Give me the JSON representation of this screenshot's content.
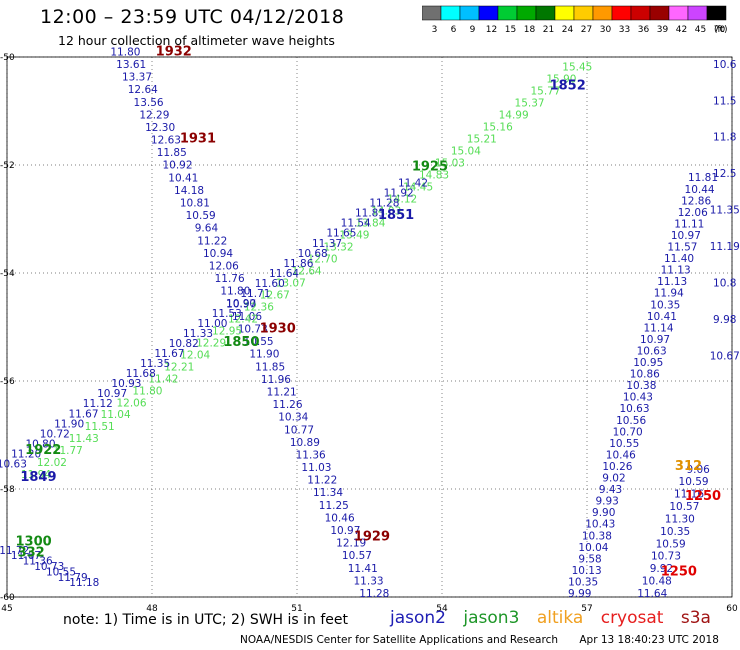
{
  "header": {
    "title": "12:00 – 23:59 UTC 04/12/2018",
    "subtitle": "12 hour collection of altimeter wave heights"
  },
  "colorbar": {
    "unit": "(ft)",
    "ticks": [
      "3",
      "6",
      "9",
      "12",
      "15",
      "18",
      "21",
      "24",
      "27",
      "30",
      "33",
      "36",
      "39",
      "42",
      "45",
      "70"
    ],
    "colors": [
      "#707070",
      "#00ffff",
      "#00bfff",
      "#0000ff",
      "#00cc33",
      "#00aa00",
      "#007700",
      "#ffff00",
      "#ffcc00",
      "#ff9900",
      "#ff0000",
      "#cc0000",
      "#990000",
      "#ff66ff",
      "#cc44ff",
      "#000000"
    ]
  },
  "legend": {
    "note": "note:  1) Time is in UTC;  2) SWH is in feet",
    "items": [
      {
        "name": "jason2",
        "color": "#1e1eb4"
      },
      {
        "name": "jason3",
        "color": "#1e9628"
      },
      {
        "name": "altika",
        "color": "#f0a020"
      },
      {
        "name": "cryosat",
        "color": "#e61e1e"
      },
      {
        "name": "s3a",
        "color": "#a01414"
      }
    ]
  },
  "footer": {
    "credit": "NOAA/NESDIS Center for Satellite Applications and Research",
    "timestamp": "Apr 13 18:40:23 UTC 2018"
  },
  "chart_data": {
    "type": "scatter",
    "title": "12:00 – 23:59 UTC 04/12/2018",
    "subtitle": "12 hour collection of altimeter wave heights",
    "xlim": [
      45,
      60
    ],
    "ylim": [
      -60,
      -50
    ],
    "x_ticks": [
      "45",
      "48",
      "51",
      "54",
      "57",
      "60"
    ],
    "y_ticks": [
      "-50",
      "-52",
      "-54",
      "-56",
      "-58",
      "-60"
    ],
    "grid": true,
    "colors": {
      "blue": "#1a1aa8",
      "lgreen": "#55dd55",
      "dgreen": "#138a13",
      "maroon": "#8b0000",
      "red": "#e00000",
      "orange": "#e09000"
    },
    "time_labels": [
      {
        "text": "1932",
        "x": 48.45,
        "y": -49.97,
        "color": "maroon"
      },
      {
        "text": "1931",
        "x": 48.95,
        "y": -51.58,
        "color": "maroon"
      },
      {
        "text": "1930",
        "x": 50.6,
        "y": -55.1,
        "color": "maroon"
      },
      {
        "text": "1929",
        "x": 52.55,
        "y": -58.95,
        "color": "maroon"
      },
      {
        "text": "1852",
        "x": 56.6,
        "y": -50.6,
        "color": "blue"
      },
      {
        "text": "1925",
        "x": 53.75,
        "y": -52.1,
        "color": "dgreen"
      },
      {
        "text": "1851",
        "x": 53.05,
        "y": -53.0,
        "color": "blue"
      },
      {
        "text": "1850",
        "x": 49.85,
        "y": -55.35,
        "color": "dgreen"
      },
      {
        "text": "1849",
        "x": 45.65,
        "y": -57.85,
        "color": "blue"
      },
      {
        "text": "1922",
        "x": 45.75,
        "y": -57.35,
        "color": "dgreen"
      },
      {
        "text": "1300",
        "x": 45.55,
        "y": -59.05,
        "color": "dgreen"
      },
      {
        "text": "332",
        "x": 45.5,
        "y": -59.25,
        "color": "dgreen"
      },
      {
        "text": "312",
        "x": 59.1,
        "y": -57.65,
        "color": "orange"
      },
      {
        "text": "1250",
        "x": 59.4,
        "y": -58.2,
        "color": "red"
      },
      {
        "text": "1250",
        "x": 58.9,
        "y": -59.6,
        "color": "red"
      }
    ],
    "tracks": [
      {
        "name": "track-nw-descending",
        "color": "blue",
        "x_start": 47.45,
        "y_start": -49.97,
        "x_end": 52.6,
        "y_end": -60.0,
        "values": [
          "11.80",
          "13.61",
          "13.37",
          "12.64",
          "13.56",
          "12.29",
          "12.30",
          "12.63",
          "11.85",
          "10.92",
          "10.41",
          "14.18",
          "10.81",
          "10.59",
          "9.64",
          "11.22",
          "10.94",
          "12.06",
          "11.76",
          "11.80",
          "10.97",
          "11.06",
          "10.73",
          "10.55",
          "11.90",
          "11.85",
          "11.96",
          "11.21",
          "11.26",
          "10.34",
          "10.77",
          "10.89",
          "11.36",
          "11.03",
          "11.22",
          "11.34",
          "11.25",
          "10.46",
          "10.97",
          "12.19",
          "10.57",
          "11.41",
          "11.33",
          "11.28"
        ]
      },
      {
        "name": "track-jason3-ascending",
        "color": "lgreen",
        "x_start": 45.6,
        "y_start": -57.8,
        "x_end": 56.8,
        "y_end": -50.25,
        "values": [
          "11.94",
          "12.02",
          "11.77",
          "11.43",
          "11.51",
          "11.04",
          "12.06",
          "11.80",
          "11.42",
          "12.21",
          "12.04",
          "12.29",
          "12.95",
          "12.42",
          "12.36",
          "12.67",
          "13.07",
          "12.64",
          "12.70",
          "13.32",
          "13.49",
          "13.84",
          "14.03",
          "14.12",
          "14.45",
          "14.83",
          "15.03",
          "15.04",
          "15.21",
          "15.16",
          "14.99",
          "15.37",
          "15.77",
          "15.90",
          "15.45"
        ]
      },
      {
        "name": "track-jason2-ascending",
        "color": "blue",
        "x_start": 45.1,
        "y_start": -57.6,
        "x_end": 53.4,
        "y_end": -52.4,
        "values": [
          "10.63",
          "11.20",
          "10.80",
          "10.72",
          "11.90",
          "11.67",
          "11.12",
          "10.97",
          "10.93",
          "11.68",
          "11.35",
          "11.67",
          "10.82",
          "11.33",
          "11.00",
          "11.53",
          "10.90",
          "11.71",
          "11.60",
          "11.64",
          "11.86",
          "10.68",
          "11.37",
          "11.65",
          "11.54",
          "11.83",
          "11.28",
          "11.92",
          "11.42"
        ]
      },
      {
        "name": "track-east-1",
        "color": "blue",
        "x_start": 56.85,
        "y_start": -60.0,
        "x_end": 59.4,
        "y_end": -52.3,
        "values": [
          "9.99",
          "10.35",
          "10.13",
          "9.58",
          "10.04",
          "10.38",
          "10.43",
          "9.90",
          "9.93",
          "9.43",
          "9.02",
          "10.26",
          "10.46",
          "10.55",
          "10.70",
          "10.56",
          "10.63",
          "10.43",
          "10.38",
          "10.86",
          "10.95",
          "10.63",
          "10.97",
          "11.14",
          "10.41",
          "10.35",
          "11.94",
          "11.13",
          "11.13",
          "11.40",
          "11.57",
          "10.97",
          "11.11",
          "12.06",
          "12.86",
          "10.44",
          "11.81"
        ]
      },
      {
        "name": "track-east-2",
        "color": "blue",
        "x_start": 58.35,
        "y_start": -60.0,
        "x_end": 59.3,
        "y_end": -57.7,
        "values": [
          "11.64",
          "10.48",
          "9.92",
          "10.73",
          "10.59",
          "10.35",
          "11.30",
          "10.57",
          "11.16",
          "10.59",
          "9.06"
        ]
      },
      {
        "name": "track-east-edge",
        "color": "blue",
        "x_start": 59.85,
        "y_start": -55.6,
        "x_end": 59.85,
        "y_end": -50.2,
        "values": [
          "10.67",
          "9.98",
          "10.8",
          "11.19",
          "11.35",
          "12.5",
          "11.8",
          "11.5",
          "10.6"
        ]
      },
      {
        "name": "track-sw-cluster",
        "color": "blue",
        "x_start": 45.15,
        "y_start": -59.2,
        "x_end": 46.6,
        "y_end": -59.8,
        "values": [
          "11.72",
          "11.67",
          "11.36",
          "10.73",
          "10.55",
          "11.79",
          "11.18"
        ]
      }
    ]
  }
}
